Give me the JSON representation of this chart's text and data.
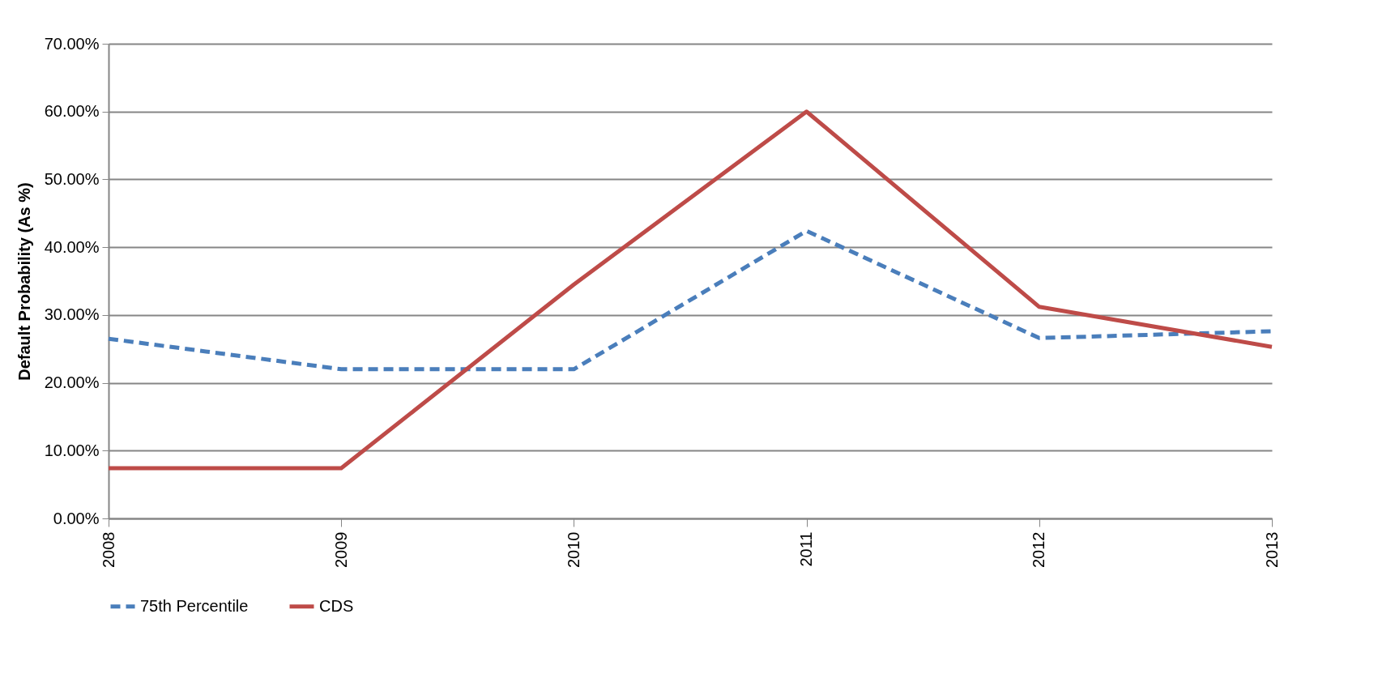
{
  "chart_data": {
    "type": "line",
    "ylabel": "Default Probability (As %)",
    "categories": [
      "2008",
      "2009",
      "2010",
      "2011",
      "2012",
      "2013"
    ],
    "series": [
      {
        "name": "75th Percentile",
        "color": "#4a7ebb",
        "line_style": "dashed",
        "values": [
          26.5,
          22.0,
          22.0,
          42.4,
          26.6,
          27.6
        ]
      },
      {
        "name": "CDS",
        "color": "#be4b48",
        "line_style": "solid",
        "values": [
          7.4,
          7.4,
          34.5,
          60.0,
          31.2,
          25.3
        ]
      }
    ],
    "ylim": [
      0,
      70
    ],
    "yticks": [
      {
        "value": 0,
        "label": "0.00%"
      },
      {
        "value": 10,
        "label": "10.00%"
      },
      {
        "value": 20,
        "label": "20.00%"
      },
      {
        "value": 30,
        "label": "30.00%"
      },
      {
        "value": 40,
        "label": "40.00%"
      },
      {
        "value": 50,
        "label": "50.00%"
      },
      {
        "value": 60,
        "label": "60.00%"
      },
      {
        "value": 70,
        "label": "70.00%"
      }
    ],
    "grid": "y",
    "legend": "bottom",
    "marker": "none"
  }
}
